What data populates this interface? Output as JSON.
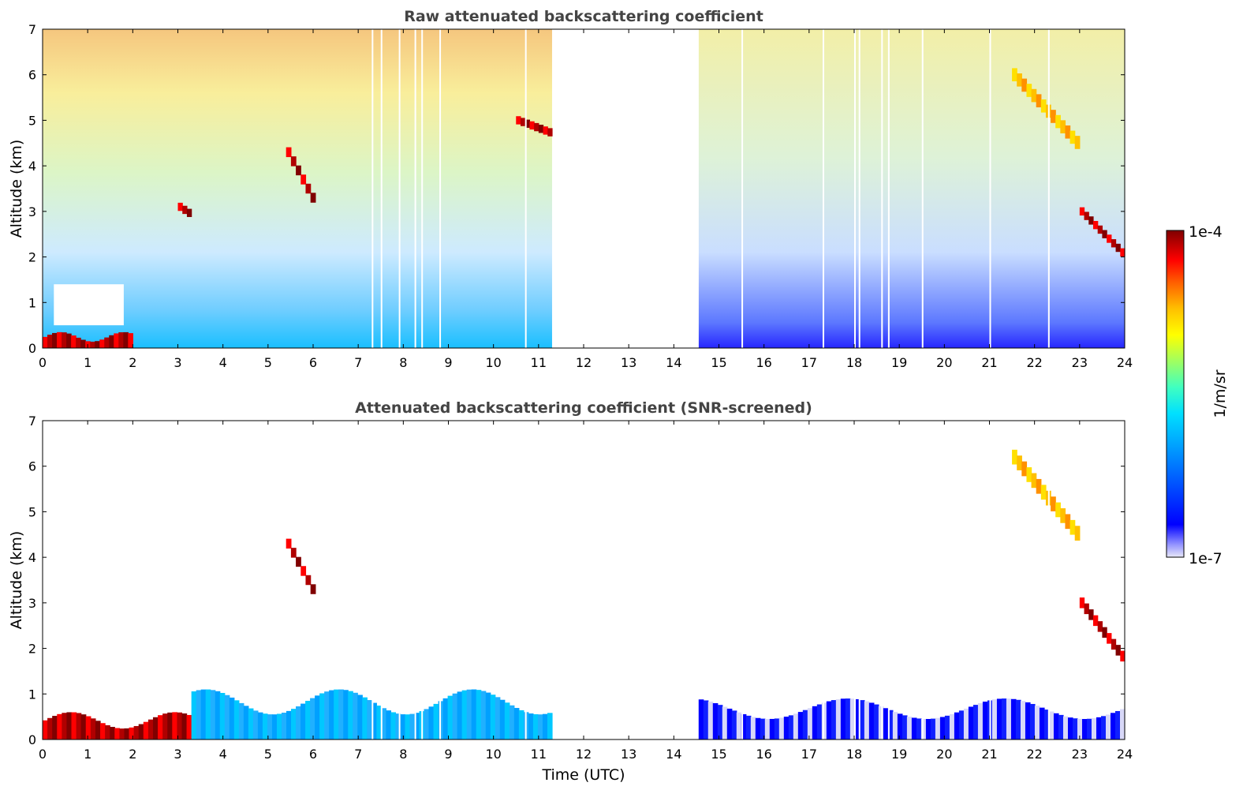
{
  "chart_data": [
    {
      "type": "heatmap",
      "title": "Raw attenuated backscattering coefficient",
      "xlabel": "",
      "ylabel": "Altitude (km)",
      "xlim": [
        0,
        24
      ],
      "ylim": [
        0,
        7
      ],
      "xticks": [
        "0",
        "1",
        "2",
        "3",
        "4",
        "5",
        "6",
        "7",
        "8",
        "9",
        "10",
        "11",
        "12",
        "13",
        "14",
        "15",
        "16",
        "17",
        "18",
        "19",
        "20",
        "21",
        "22",
        "23",
        "24"
      ],
      "yticks": [
        "0",
        "1",
        "2",
        "3",
        "4",
        "5",
        "6",
        "7"
      ],
      "data_gap_hours": [
        11.3,
        14.55
      ],
      "features": [
        {
          "start_time": 0.0,
          "end_time": 2.0,
          "altitude_km": [
            0.0,
            0.35
          ],
          "level": "high"
        },
        {
          "start_time": 3.0,
          "end_time": 3.3,
          "altitude_km": [
            2.9,
            3.1
          ],
          "level": "high"
        },
        {
          "start_time": 5.4,
          "end_time": 6.05,
          "altitude_km": [
            3.1,
            4.3
          ],
          "level": "high"
        },
        {
          "start_time": 10.5,
          "end_time": 11.3,
          "altitude_km": [
            4.7,
            5.0
          ],
          "level": "high"
        },
        {
          "start_time": 23.0,
          "end_time": 24.0,
          "altitude_km": [
            2.0,
            3.0
          ],
          "level": "high"
        },
        {
          "start_time": 21.5,
          "end_time": 23.0,
          "altitude_km": [
            4.4,
            6.0
          ],
          "level": "medium"
        }
      ]
    },
    {
      "type": "heatmap",
      "title": "Attenuated backscattering coefficient (SNR-screened)",
      "xlabel": "Time (UTC)",
      "ylabel": "Altitude (km)",
      "xlim": [
        0,
        24
      ],
      "ylim": [
        0,
        7
      ],
      "xticks": [
        "0",
        "1",
        "2",
        "3",
        "4",
        "5",
        "6",
        "7",
        "8",
        "9",
        "10",
        "11",
        "12",
        "13",
        "14",
        "15",
        "16",
        "17",
        "18",
        "19",
        "20",
        "21",
        "22",
        "23",
        "24"
      ],
      "yticks": [
        "0",
        "1",
        "2",
        "3",
        "4",
        "5",
        "6",
        "7"
      ],
      "data_gap_hours": [
        11.3,
        14.55
      ],
      "features": [
        {
          "start_time": 0.0,
          "end_time": 3.3,
          "altitude_km": [
            0.0,
            0.6
          ],
          "level": "high"
        },
        {
          "start_time": 3.3,
          "end_time": 11.3,
          "altitude_km": [
            0.0,
            1.1
          ],
          "level": "low"
        },
        {
          "start_time": 14.55,
          "end_time": 24.0,
          "altitude_km": [
            0.0,
            0.9
          ],
          "level": "very-low"
        },
        {
          "start_time": 5.4,
          "end_time": 6.05,
          "altitude_km": [
            3.1,
            4.3
          ],
          "level": "high"
        },
        {
          "start_time": 23.0,
          "end_time": 24.0,
          "altitude_km": [
            1.7,
            3.0
          ],
          "level": "high"
        },
        {
          "start_time": 21.5,
          "end_time": 23.0,
          "altitude_km": [
            4.4,
            6.2
          ],
          "level": "medium"
        }
      ]
    }
  ],
  "colorbar": {
    "label": "1/m/sr",
    "max_label": "1e-4",
    "min_label": "1e-7",
    "colors": [
      "#e8e8f8",
      "#c8c8f0",
      "#9090ff",
      "#0000ff",
      "#0050ff",
      "#00a0ff",
      "#00e0ff",
      "#40ffc0",
      "#a0ff60",
      "#ffff00",
      "#ffc000",
      "#ff6000",
      "#ff0000",
      "#b00000",
      "#800000"
    ]
  }
}
